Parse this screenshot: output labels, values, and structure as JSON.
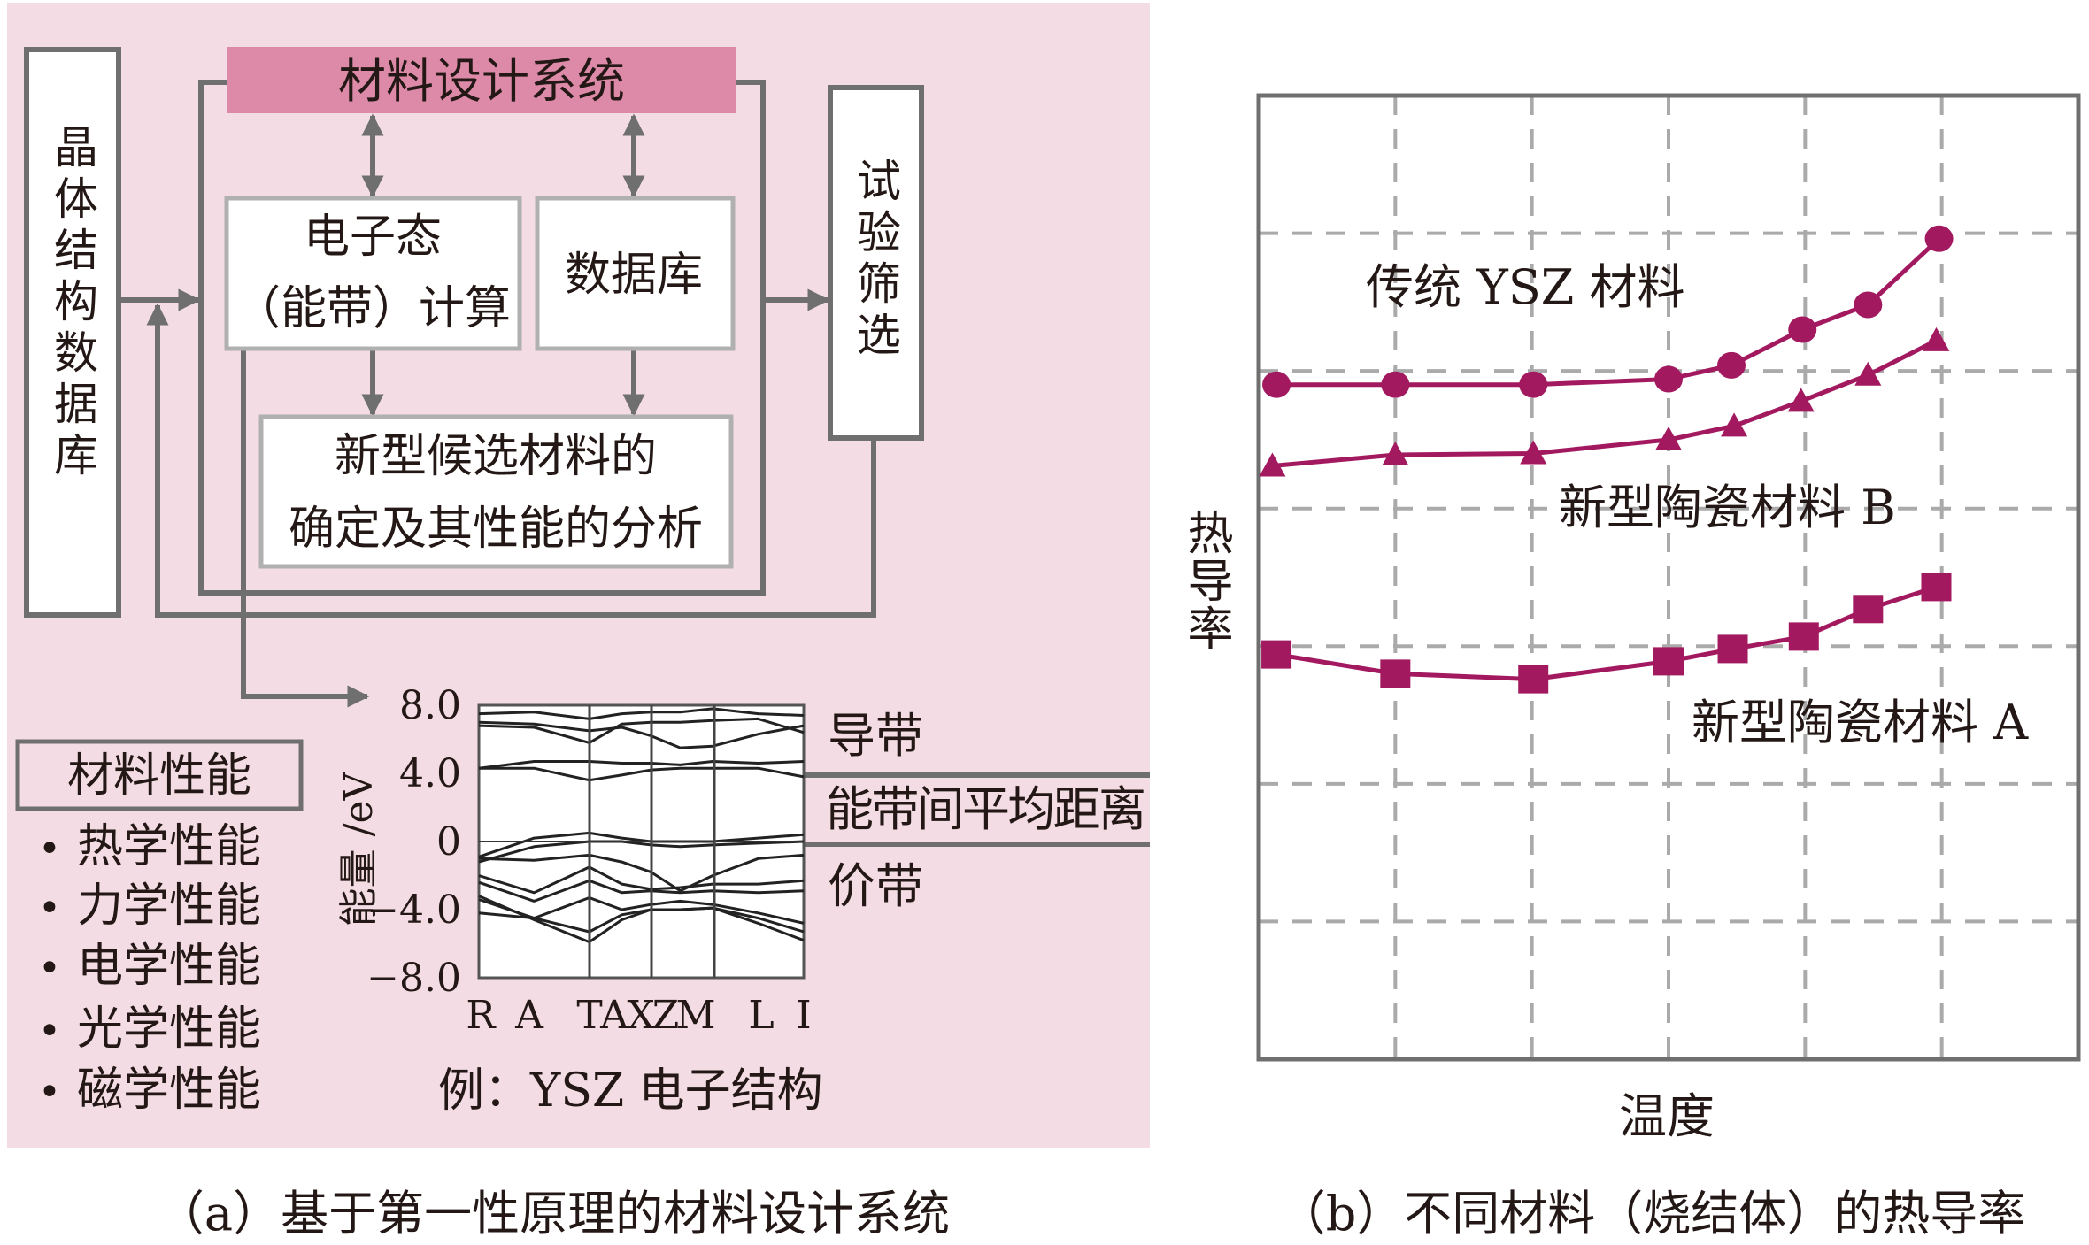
{
  "panel_a": {
    "crystal_db": "晶体结构数据库",
    "system_title": "材料设计系统",
    "electronic_line1": "电子态",
    "electronic_line2": "（能带）计算",
    "database": "数据库",
    "candidate_line1": "新型候选材料的",
    "candidate_line2": "确定及其性能的分析",
    "screening": "试验筛选",
    "properties_title": "材料性能",
    "properties": [
      "热学性能",
      "力学性能",
      "电学性能",
      "光学性能",
      "磁学性能"
    ],
    "bullet": "•",
    "band_plot": {
      "ylabel": "能量 /eV",
      "yticks": [
        "8.0",
        "4.0",
        "0",
        "−4.0",
        "−8.0"
      ],
      "ylim": [
        -8,
        8
      ],
      "klabels": [
        "R",
        "A",
        "Τ",
        "A",
        "X",
        "Z",
        "M",
        "L",
        "I"
      ],
      "conduction_label": "导带",
      "gap_label": "能带间平均距离",
      "valence_label": "价带",
      "example_caption": "例：YSZ 电子结构"
    },
    "caption": "（a）基于第一性原理的材料设计系统",
    "colors": {
      "panel_bg": "#f3dce4",
      "title_fill": "#dc8aa8",
      "arrow": "#6f6f6f"
    }
  },
  "panel_b": {
    "caption": "（b）不同材料（烧结体）的热导率"
  },
  "chart_data": {
    "type": "line",
    "xlabel": "温度",
    "ylabel": "热导率",
    "xlim": [
      0,
      6
    ],
    "ylim": [
      0,
      7
    ],
    "grid": true,
    "tick_labels_shown": false,
    "series": [
      {
        "name": "传统 YSZ 材料",
        "marker": "circle",
        "color": "#a3195f",
        "x": [
          0.13,
          1.0,
          2.01,
          3.0,
          3.46,
          3.98,
          4.46,
          4.98
        ],
        "y": [
          4.9,
          4.9,
          4.9,
          4.94,
          5.04,
          5.3,
          5.48,
          5.96
        ]
      },
      {
        "name": "新型陶瓷材料 B",
        "marker": "triangle",
        "color": "#a3195f",
        "x": [
          0.1,
          1.0,
          2.01,
          3.0,
          3.48,
          3.97,
          4.46,
          4.96
        ],
        "y": [
          4.31,
          4.39,
          4.4,
          4.5,
          4.6,
          4.78,
          4.97,
          5.22
        ]
      },
      {
        "name": "新型陶瓷材料 A",
        "marker": "square",
        "color": "#a3195f",
        "x": [
          0.13,
          1.0,
          2.01,
          3.0,
          3.47,
          3.99,
          4.46,
          4.96
        ],
        "y": [
          2.94,
          2.8,
          2.76,
          2.89,
          2.98,
          3.07,
          3.27,
          3.43
        ]
      }
    ]
  }
}
